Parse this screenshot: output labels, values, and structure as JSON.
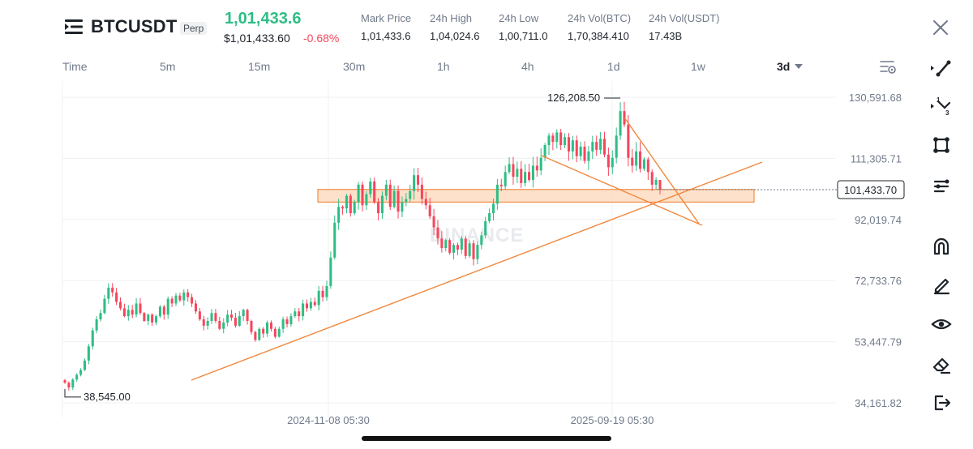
{
  "header": {
    "symbol": "BTCUSDT",
    "contract_type": "Perp",
    "last_price": "1,01,433.6",
    "usd_price": "$1,01,433.60",
    "change": "-0.68%",
    "stats": [
      {
        "label": "Mark Price",
        "value": "1,01,433.6"
      },
      {
        "label": "24h High",
        "value": "1,04,024.6"
      },
      {
        "label": "24h Low",
        "value": "1,00,711.0"
      },
      {
        "label": "24h Vol(BTC)",
        "value": "1,70,384.410"
      },
      {
        "label": "24h Vol(USDT)",
        "value": "17.43B"
      }
    ]
  },
  "intervals": {
    "items": [
      "Time",
      "5m",
      "15m",
      "30m",
      "1h",
      "4h",
      "1d",
      "1w",
      "3d"
    ],
    "selected": "3d"
  },
  "icons": {
    "menu": "menu-icon",
    "close": "close-icon",
    "settings": "chart-settings-icon",
    "tools": [
      "trend-line-icon",
      "fibonacci-icon",
      "shapes-icon",
      "brush-icon",
      "magnet-icon",
      "pencil-icon",
      "eye-icon",
      "eraser-icon",
      "exit-icon"
    ]
  },
  "colors": {
    "up": "#2ebd85",
    "down": "#f6465d",
    "drawing": "#f0883e",
    "zone_fill": "#fde0c8"
  },
  "chart_data": {
    "type": "candlestick",
    "watermark": "BINANCE",
    "y_ticks": [
      "130,591.68",
      "111,305.71",
      "92,019.74",
      "72,733.76",
      "53,447.79",
      "34,161.82"
    ],
    "ylim": [
      34161.82,
      130591.68
    ],
    "x_ticks": [
      "2024-11-08 05:30",
      "2025-09-19 05:30"
    ],
    "current_price_label": "101,433.70",
    "current_price": 101433.7,
    "high_label": "126,208.50",
    "low_label": "38,545.00",
    "zone": [
      97500,
      101500
    ],
    "closes": [
      40500,
      39000,
      41500,
      43000,
      44500,
      47500,
      52000,
      57000,
      60500,
      62500,
      67000,
      70500,
      69000,
      66000,
      64000,
      61500,
      63500,
      62000,
      65500,
      62500,
      60000,
      62000,
      59500,
      61500,
      64500,
      62000,
      67000,
      65500,
      68000,
      66500,
      69000,
      67500,
      65500,
      63000,
      60500,
      58500,
      60000,
      62500,
      60000,
      57500,
      59500,
      62000,
      61000,
      58500,
      61500,
      63500,
      60000,
      56500,
      54000,
      57500,
      56000,
      59500,
      57500,
      55000,
      57500,
      60500,
      59000,
      61500,
      63000,
      61500,
      65500,
      64000,
      66000,
      65000,
      69500,
      67500,
      71000,
      80000,
      91000,
      96000,
      95500,
      99500,
      94000,
      97500,
      103000,
      96500,
      100000,
      104000,
      97500,
      94000,
      99500,
      103000,
      96000,
      101000,
      94500,
      97500,
      98500,
      101000,
      106000,
      103000,
      98500,
      96500,
      93000,
      89500,
      86000,
      83000,
      85500,
      81500,
      84000,
      82500,
      86000,
      80500,
      84500,
      79500,
      84000,
      87000,
      91500,
      94000,
      97000,
      103000,
      102500,
      107000,
      109500,
      105500,
      108000,
      103500,
      107000,
      104500,
      109000,
      107500,
      111500,
      115500,
      118500,
      116500,
      119500,
      115500,
      118000,
      113500,
      117000,
      112000,
      115000,
      110500,
      113500,
      116500,
      114000,
      117500,
      112500,
      108500,
      111500,
      118500,
      126208.5,
      122000,
      111500,
      109000,
      113500,
      108000,
      111000,
      107000,
      103000,
      104500,
      101433.7
    ]
  }
}
